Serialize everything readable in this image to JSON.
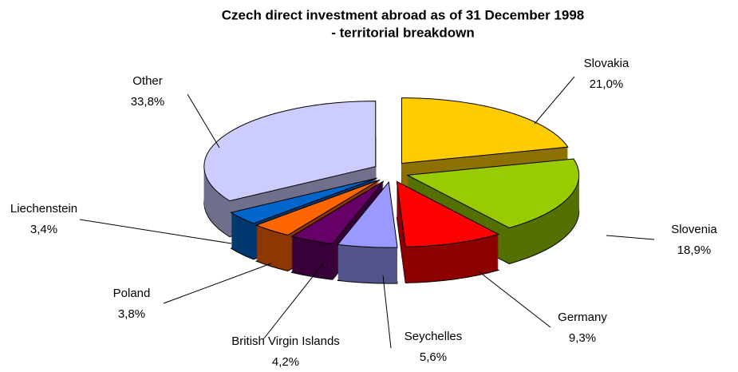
{
  "chart_data": {
    "type": "pie3d",
    "title": [
      "Czech direct investment abroad as of 31 December 1998",
      "- territorial breakdown"
    ],
    "categories": [
      "Slovakia",
      "Slovenia",
      "Germany",
      "Seychelles",
      "British Virgin Islands",
      "Poland",
      "Liechenstein",
      "Other"
    ],
    "values": [
      21.0,
      18.9,
      9.3,
      5.6,
      4.2,
      3.8,
      3.4,
      33.8
    ],
    "value_labels": [
      "21,0%",
      "18,9%",
      "9,3%",
      "5,6%",
      "4,2%",
      "3,8%",
      "3,4%",
      "33,8%"
    ],
    "colors": [
      "#ffcc00",
      "#99cc00",
      "#ff0000",
      "#9999ff",
      "#660066",
      "#ff6600",
      "#0066cc",
      "#ccccff"
    ]
  }
}
